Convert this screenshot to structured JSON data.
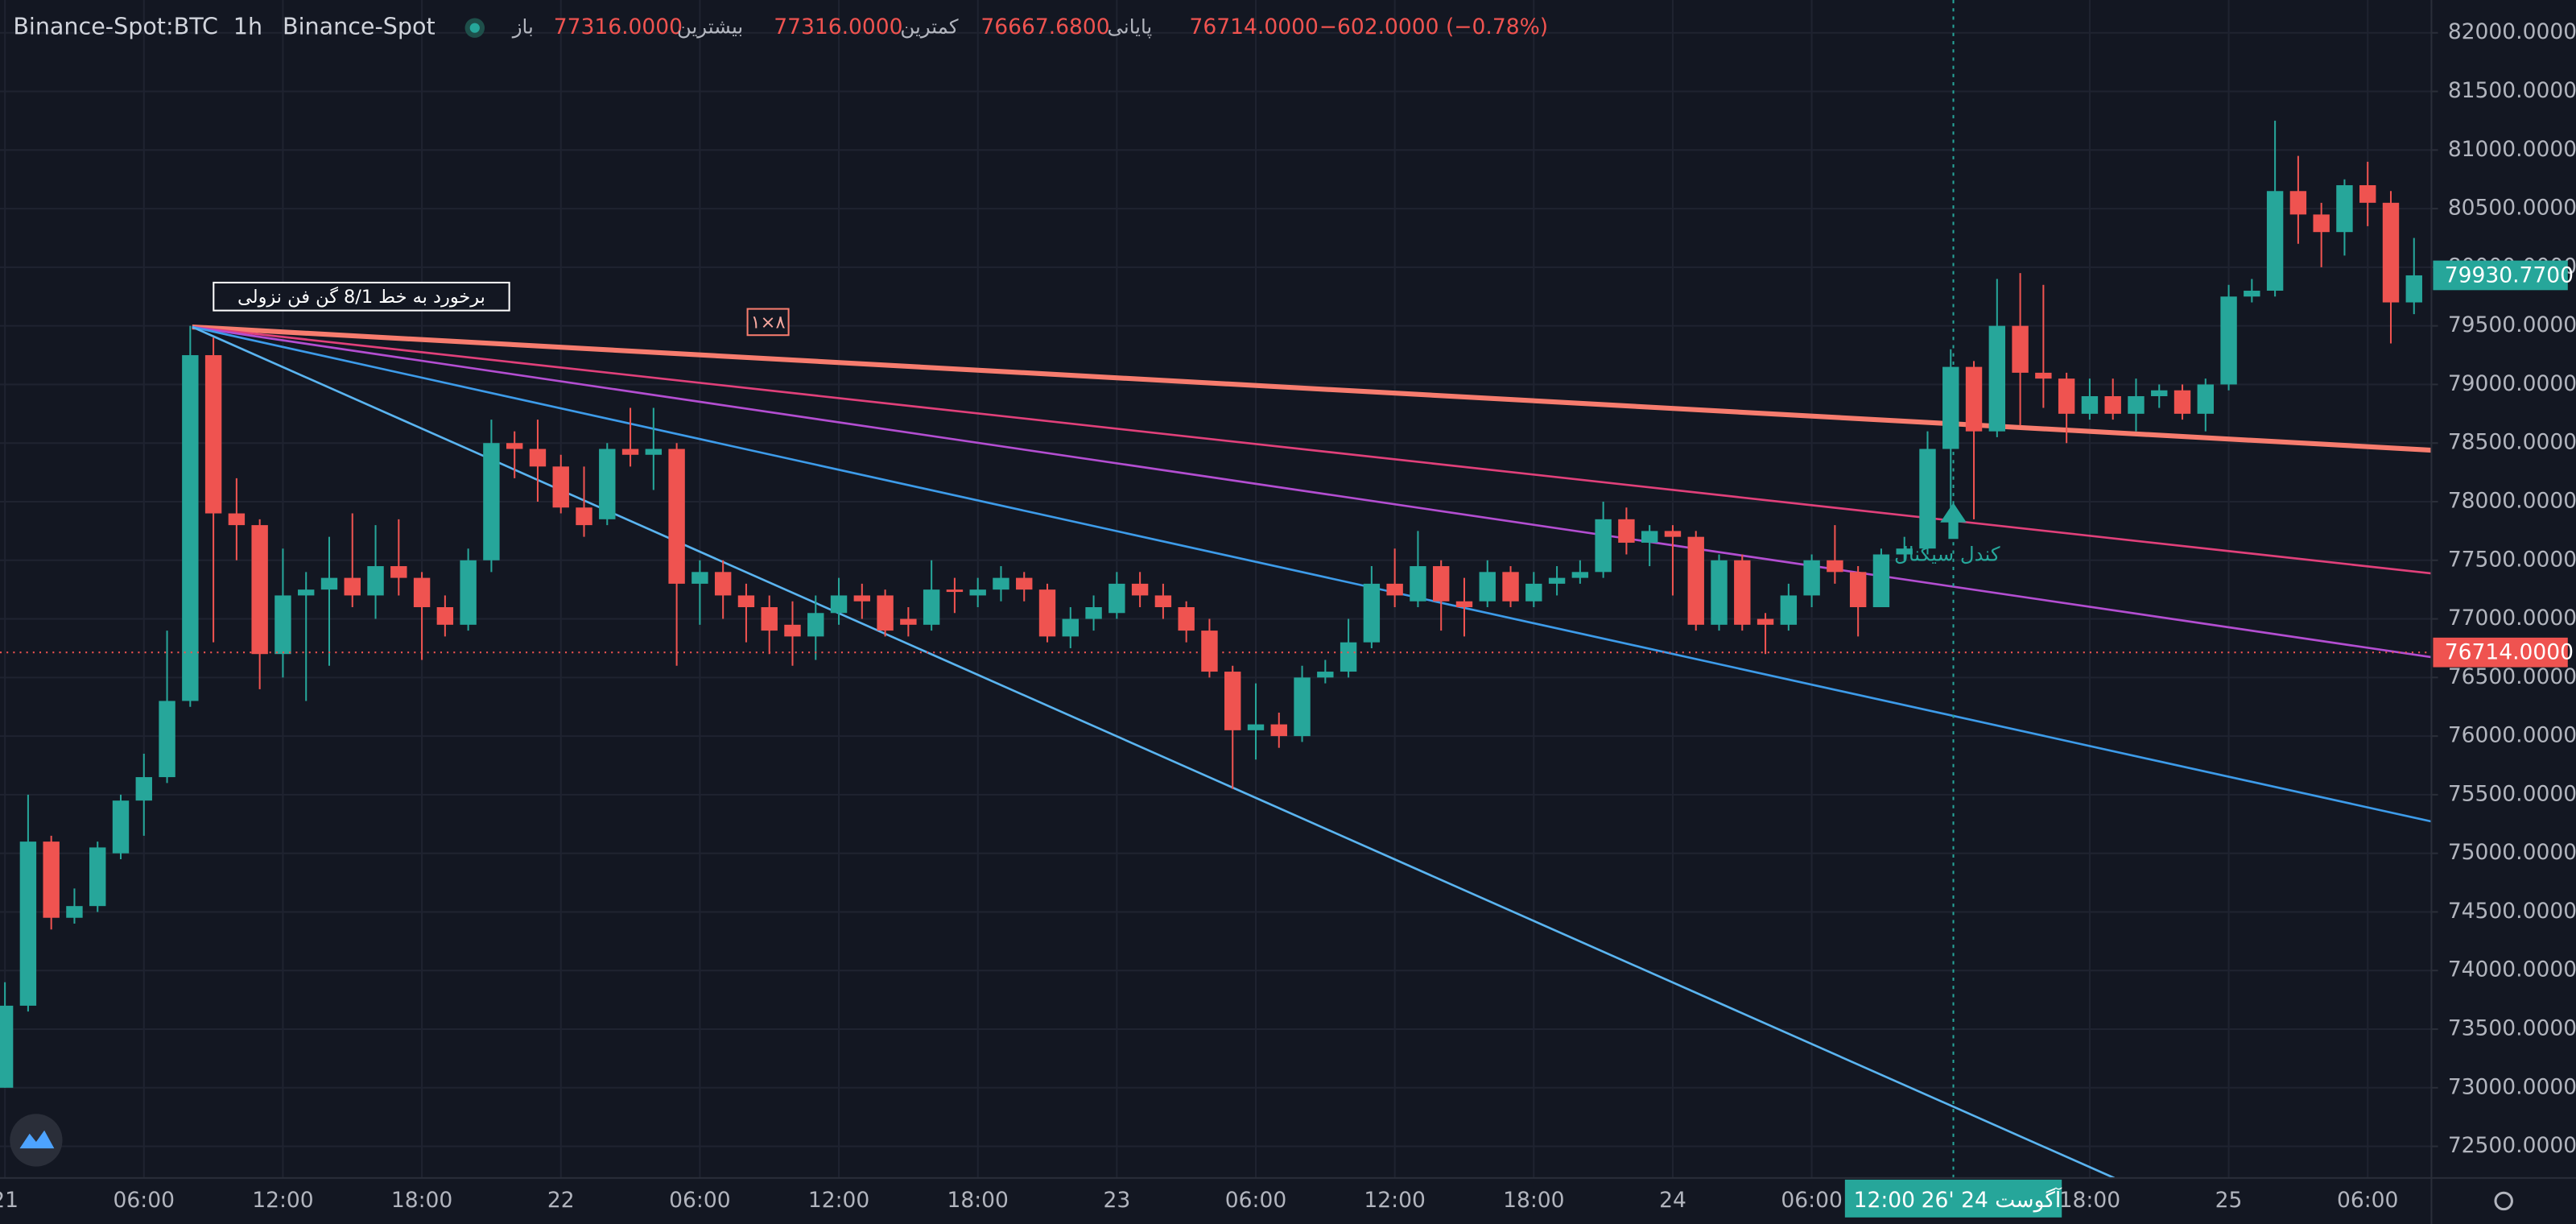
{
  "chart_data": {
    "type": "candlestick",
    "symbol": "Binance-Spot:BTC",
    "interval": "1h",
    "exchange": "Binance-Spot",
    "legend": {
      "open_label": "باز",
      "open": "77316.0000",
      "high_label": "بیشترین",
      "high": "77316.0000",
      "low_label": "کمترین",
      "low": "76667.6800",
      "close_label": "پایانی",
      "close": "76714.0000",
      "change": "−602.0000 (−0.78%)"
    },
    "categories": [
      "21",
      null,
      null,
      null,
      null,
      null,
      "06:00",
      null,
      null,
      null,
      null,
      null,
      "12:00",
      null,
      null,
      null,
      null,
      null,
      "18:00",
      null,
      null,
      null,
      null,
      null,
      "22",
      null,
      null,
      null,
      null,
      null,
      "06:00",
      null,
      null,
      null,
      null,
      null,
      "12:00",
      null,
      null,
      null,
      null,
      null,
      "18:00",
      null,
      null,
      null,
      null,
      null,
      "23",
      null,
      null,
      null,
      null,
      null,
      "06:00",
      null,
      null,
      null,
      null,
      null,
      "12:00",
      null,
      null,
      null,
      null,
      null,
      "18:00",
      null,
      null,
      null,
      null,
      null,
      "24",
      null,
      null,
      null,
      null,
      null,
      "06:00",
      null,
      null,
      null,
      null,
      null,
      null,
      null,
      null,
      null,
      null,
      null,
      "18:00",
      null,
      null,
      null,
      null,
      null,
      "25",
      null,
      null,
      null,
      null,
      null,
      "06:00",
      null,
      null
    ],
    "open": [
      73000,
      73700,
      75100,
      74450,
      74550,
      75000,
      75450,
      75650,
      76300,
      79250,
      77900,
      77800,
      76700,
      77200,
      77250,
      77350,
      77200,
      77450,
      77350,
      77100,
      76950,
      77500,
      78500,
      78450,
      78300,
      77950,
      77850,
      78450,
      78400,
      78450,
      77300,
      77400,
      77200,
      77100,
      76950,
      76850,
      77050,
      77200,
      77200,
      77000,
      76950,
      77250,
      77200,
      77250,
      77350,
      77250,
      76850,
      77000,
      77050,
      77300,
      77200,
      77100,
      76900,
      76550,
      76050,
      76100,
      76000,
      76500,
      76550,
      76800,
      77300,
      77150,
      77450,
      77150,
      77150,
      77400,
      77150,
      77300,
      77350,
      77400,
      77850,
      77650,
      77750,
      77700,
      76950,
      77500,
      77000,
      76950,
      77200,
      77500,
      77400,
      77100,
      77550,
      77600,
      78450,
      79150,
      78600,
      79500,
      79100,
      79050,
      78750,
      78900,
      78750,
      78900,
      78950,
      78750,
      79000,
      79750,
      79800,
      80650,
      80450,
      80300,
      80700,
      80550,
      79700
    ],
    "high": [
      73900,
      75500,
      75150,
      74700,
      75100,
      75500,
      75850,
      76900,
      79500,
      79400,
      78200,
      77850,
      77600,
      77400,
      77700,
      77900,
      77800,
      77850,
      77400,
      77200,
      77600,
      78700,
      78600,
      78700,
      78400,
      78300,
      78500,
      78800,
      78800,
      78500,
      77500,
      77500,
      77300,
      77200,
      77150,
      77200,
      77350,
      77300,
      77250,
      77100,
      77500,
      77350,
      77350,
      77450,
      77400,
      77300,
      77100,
      77200,
      77400,
      77400,
      77300,
      77150,
      77000,
      76600,
      76450,
      76200,
      76600,
      76650,
      77000,
      77450,
      77600,
      77750,
      77500,
      77350,
      77500,
      77450,
      77400,
      77450,
      77500,
      78000,
      77950,
      77800,
      77800,
      77750,
      77550,
      77550,
      77050,
      77300,
      77550,
      77800,
      77450,
      77600,
      77700,
      78600,
      79300,
      79200,
      79900,
      79950,
      79850,
      79100,
      79050,
      79050,
      79050,
      79000,
      79000,
      79050,
      79850,
      79900,
      81250,
      80950,
      80550,
      80750,
      80900,
      80650,
      80250
    ],
    "low": [
      73000,
      73650,
      74350,
      74400,
      74500,
      74950,
      75150,
      75600,
      76250,
      76800,
      77500,
      76400,
      76500,
      76300,
      76600,
      77100,
      77000,
      77200,
      76650,
      76850,
      76900,
      77400,
      78200,
      78000,
      77900,
      77700,
      77800,
      78300,
      78100,
      76600,
      76950,
      77000,
      76800,
      76700,
      76600,
      76650,
      76950,
      77000,
      76850,
      76850,
      76900,
      77050,
      77100,
      77150,
      77150,
      76800,
      76750,
      76900,
      77000,
      77100,
      77000,
      76800,
      76500,
      75550,
      75800,
      75900,
      75950,
      76450,
      76500,
      76750,
      77100,
      77100,
      76900,
      76850,
      77100,
      77100,
      77100,
      77200,
      77300,
      77350,
      77550,
      77450,
      77200,
      76900,
      76900,
      76900,
      76700,
      76900,
      77100,
      77300,
      76850,
      77100,
      77500,
      77550,
      77850,
      77850,
      78550,
      78650,
      78800,
      78500,
      78700,
      78700,
      78600,
      78800,
      78700,
      78600,
      78950,
      79700,
      79750,
      80200,
      80000,
      80100,
      80350,
      79350,
      79600
    ],
    "close": [
      73700,
      75100,
      74450,
      74550,
      75050,
      75450,
      75650,
      76300,
      79250,
      77900,
      77800,
      76700,
      77200,
      77250,
      77350,
      77200,
      77450,
      77350,
      77100,
      76950,
      77500,
      78500,
      78450,
      78300,
      77950,
      77800,
      78450,
      78400,
      78450,
      77300,
      77400,
      77200,
      77100,
      76900,
      76850,
      77050,
      77200,
      77150,
      76900,
      76950,
      77250,
      77230,
      77250,
      77350,
      77250,
      76850,
      77000,
      77100,
      77300,
      77200,
      77100,
      76900,
      76550,
      76050,
      76100,
      76000,
      76500,
      76550,
      76800,
      77300,
      77200,
      77450,
      77150,
      77100,
      77400,
      77150,
      77300,
      77350,
      77400,
      77850,
      77650,
      77750,
      77700,
      76950,
      77500,
      76950,
      76950,
      77200,
      77500,
      77400,
      77100,
      77550,
      77600,
      78450,
      79150,
      78600,
      79500,
      79100,
      79050,
      78750,
      78900,
      78750,
      78900,
      78950,
      78750,
      79000,
      79750,
      79800,
      80650,
      80450,
      80300,
      80700,
      80550,
      79700,
      79930.77
    ],
    "up_color": "#26a69a",
    "down_color": "#ef5350",
    "ylim": [
      72230,
      82280
    ],
    "yticks": [
      {
        "value": 72500,
        "label": "72500.0000"
      },
      {
        "value": 73000,
        "label": "73000.0000"
      },
      {
        "value": 73500,
        "label": "73500.0000"
      },
      {
        "value": 74000,
        "label": "74000.0000"
      },
      {
        "value": 74500,
        "label": "74500.0000"
      },
      {
        "value": 75000,
        "label": "75000.0000"
      },
      {
        "value": 75500,
        "label": "75500.0000"
      },
      {
        "value": 76000,
        "label": "76000.0000"
      },
      {
        "value": 76500,
        "label": "76500.0000"
      },
      {
        "value": 77000,
        "label": "77000.0000"
      },
      {
        "value": 77500,
        "label": "77500.0000"
      },
      {
        "value": 78000,
        "label": "78000.0000"
      },
      {
        "value": 78500,
        "label": "78500.0000"
      },
      {
        "value": 79000,
        "label": "79000.0000"
      },
      {
        "value": 79500,
        "label": "79500.0000"
      },
      {
        "value": 80000,
        "label": "80000.0000"
      },
      {
        "value": 80500,
        "label": "80500.0000"
      },
      {
        "value": 81000,
        "label": "81000.0000"
      },
      {
        "value": 81500,
        "label": "81500.0000"
      },
      {
        "value": 82000,
        "label": "82000.0000"
      }
    ],
    "price_labels": [
      {
        "value": 79930.77,
        "label": "79930.7700",
        "color": "#26a69a"
      },
      {
        "value": 76714,
        "label": "76714.0000",
        "color": "#ef5350"
      }
    ],
    "grid": true,
    "crosshair": {
      "time": "12:00",
      "date": "26' آگوست 24"
    },
    "annotations": {
      "fan_note": "برخورد به خط 8/1 گن فن نزولی",
      "fan_ratio": "۱×۸",
      "signal": "کندل سیگنال"
    }
  }
}
